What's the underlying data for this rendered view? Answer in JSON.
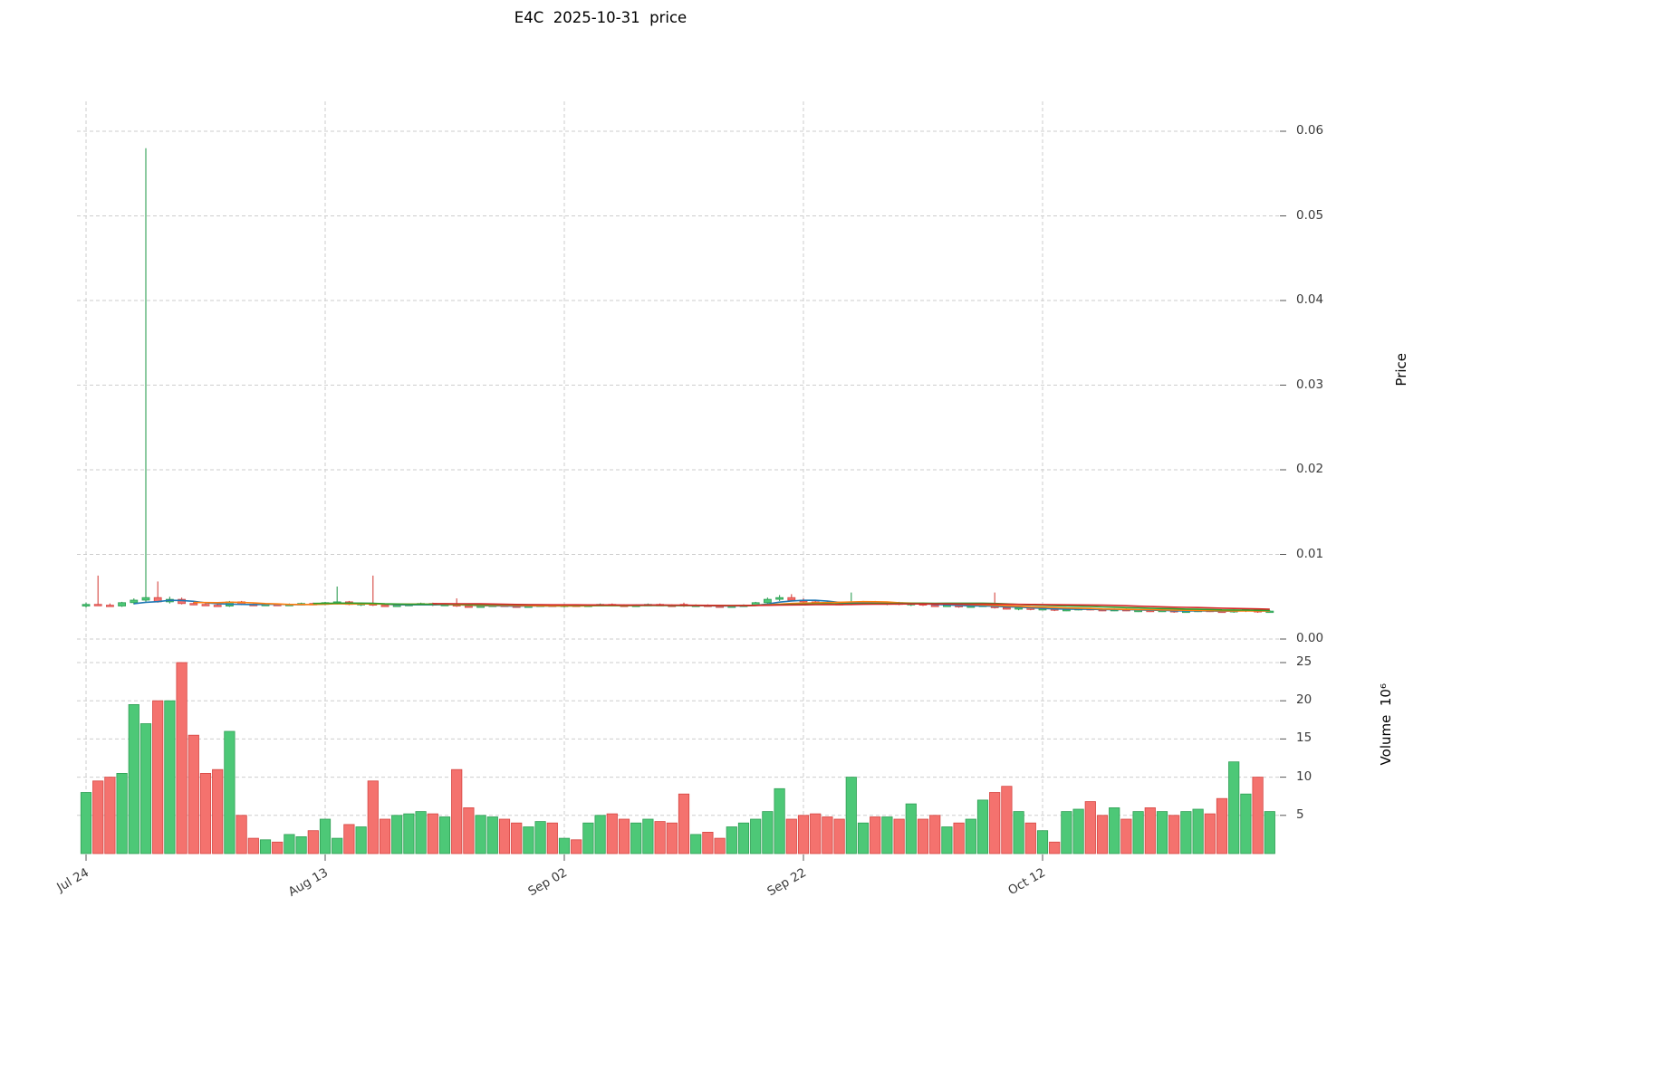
{
  "title": "E4C  2025-10-31  price",
  "price_axis": {
    "label": "Price",
    "tick_values": [
      0,
      0.01,
      0.02,
      0.03,
      0.04,
      0.05,
      0.06
    ],
    "tick_labels": [
      "0.00",
      "0.01",
      "0.02",
      "0.03",
      "0.04",
      "0.05",
      "0.06"
    ]
  },
  "volume_axis": {
    "label": "Volume  10⁶",
    "tick_values": [
      5,
      10,
      15,
      20,
      25
    ],
    "tick_labels": [
      "5",
      "10",
      "15",
      "20",
      "25"
    ]
  },
  "x_axis": {
    "tick_dates": [
      "2025-07-24",
      "2025-08-13",
      "2025-09-02",
      "2025-09-22",
      "2025-10-12"
    ],
    "tick_labels": [
      "Jul 24",
      "Aug 13",
      "Sep 02",
      "Sep 22",
      "Oct 12"
    ]
  },
  "chart_data": {
    "type": "candlestick+volume",
    "title": "E4C  2025-10-31  price",
    "symbol": "E4C",
    "as_of_date": "2025-10-31",
    "grid": "dashed",
    "legend": "none",
    "ylim_price": [
      0,
      0.0635
    ],
    "ylim_volume": [
      0,
      27.2
    ],
    "volume_unit": "millions",
    "colors": {
      "up": "#4dc877",
      "down": "#f4726e",
      "up_edge": "#2f9e54",
      "down_edge": "#d64541",
      "grid": "#cdcdcd"
    },
    "moving_averages": [
      {
        "window": 5,
        "color": "#1f77b4"
      },
      {
        "window": 10,
        "color": "#ff7f0e"
      },
      {
        "window": 20,
        "color": "#2ca02c"
      },
      {
        "window": 30,
        "color": "#d62728"
      }
    ],
    "columns": [
      "date",
      "open",
      "high",
      "low",
      "close",
      "volume_millions"
    ],
    "rows": [
      [
        "2025-07-24",
        0.0039,
        0.0043,
        0.0037,
        0.0041,
        8.0
      ],
      [
        "2025-07-25",
        0.0041,
        0.0075,
        0.0039,
        0.004,
        9.5
      ],
      [
        "2025-07-26",
        0.004,
        0.0042,
        0.0038,
        0.0039,
        10.0
      ],
      [
        "2025-07-27",
        0.0039,
        0.0044,
        0.0038,
        0.0043,
        10.5
      ],
      [
        "2025-07-28",
        0.0043,
        0.0048,
        0.0041,
        0.0046,
        19.5
      ],
      [
        "2025-07-29",
        0.0046,
        0.058,
        0.0044,
        0.0049,
        17.0
      ],
      [
        "2025-07-30",
        0.0049,
        0.0068,
        0.0043,
        0.0044,
        20.0
      ],
      [
        "2025-07-31",
        0.0044,
        0.005,
        0.0042,
        0.0047,
        20.0
      ],
      [
        "2025-08-01",
        0.0047,
        0.0049,
        0.0041,
        0.0042,
        25.0
      ],
      [
        "2025-08-02",
        0.0042,
        0.0045,
        0.004,
        0.0041,
        15.5
      ],
      [
        "2025-08-03",
        0.0041,
        0.0043,
        0.0039,
        0.004,
        10.5
      ],
      [
        "2025-08-04",
        0.004,
        0.0042,
        0.0038,
        0.0039,
        11.0
      ],
      [
        "2025-08-05",
        0.0039,
        0.0045,
        0.0038,
        0.0044,
        16.0
      ],
      [
        "2025-08-06",
        0.0044,
        0.0045,
        0.004,
        0.0041,
        5.0
      ],
      [
        "2025-08-07",
        0.0041,
        0.0042,
        0.0039,
        0.004,
        2.0
      ],
      [
        "2025-08-08",
        0.004,
        0.0042,
        0.0039,
        0.0041,
        1.8
      ],
      [
        "2025-08-09",
        0.0041,
        0.0042,
        0.0039,
        0.004,
        1.5
      ],
      [
        "2025-08-10",
        0.004,
        0.0042,
        0.0039,
        0.0041,
        2.5
      ],
      [
        "2025-08-11",
        0.0041,
        0.0043,
        0.004,
        0.0042,
        2.2
      ],
      [
        "2025-08-12",
        0.0042,
        0.0043,
        0.004,
        0.0041,
        3.0
      ],
      [
        "2025-08-13",
        0.0041,
        0.0044,
        0.004,
        0.0043,
        4.5
      ],
      [
        "2025-08-14",
        0.0043,
        0.0062,
        0.0041,
        0.0044,
        2.0
      ],
      [
        "2025-08-15",
        0.0044,
        0.0045,
        0.004,
        0.0041,
        3.8
      ],
      [
        "2025-08-16",
        0.0041,
        0.0043,
        0.0039,
        0.0042,
        3.5
      ],
      [
        "2025-08-17",
        0.0042,
        0.0075,
        0.0039,
        0.004,
        9.5
      ],
      [
        "2025-08-18",
        0.004,
        0.0042,
        0.0038,
        0.0039,
        4.5
      ],
      [
        "2025-08-19",
        0.0039,
        0.0041,
        0.0038,
        0.004,
        5.0
      ],
      [
        "2025-08-20",
        0.004,
        0.0042,
        0.0039,
        0.0041,
        5.2
      ],
      [
        "2025-08-21",
        0.0041,
        0.0043,
        0.004,
        0.0042,
        5.5
      ],
      [
        "2025-08-22",
        0.0042,
        0.0043,
        0.0039,
        0.004,
        5.2
      ],
      [
        "2025-08-23",
        0.004,
        0.0042,
        0.0039,
        0.0041,
        4.8
      ],
      [
        "2025-08-24",
        0.0041,
        0.0048,
        0.0038,
        0.0039,
        11.0
      ],
      [
        "2025-08-25",
        0.0039,
        0.0041,
        0.0037,
        0.0038,
        6.0
      ],
      [
        "2025-08-26",
        0.0038,
        0.004,
        0.0037,
        0.0039,
        5.0
      ],
      [
        "2025-08-27",
        0.0039,
        0.0041,
        0.0038,
        0.004,
        4.8
      ],
      [
        "2025-08-28",
        0.004,
        0.0041,
        0.0038,
        0.0039,
        4.5
      ],
      [
        "2025-08-29",
        0.0039,
        0.004,
        0.0037,
        0.0038,
        4.0
      ],
      [
        "2025-08-30",
        0.0038,
        0.004,
        0.0037,
        0.0039,
        3.5
      ],
      [
        "2025-08-31",
        0.0039,
        0.0041,
        0.0038,
        0.004,
        4.2
      ],
      [
        "2025-09-01",
        0.004,
        0.0041,
        0.0038,
        0.0039,
        4.0
      ],
      [
        "2025-09-02",
        0.0039,
        0.0041,
        0.0037,
        0.004,
        2.0
      ],
      [
        "2025-09-03",
        0.004,
        0.0041,
        0.0038,
        0.0039,
        1.8
      ],
      [
        "2025-09-04",
        0.0039,
        0.0041,
        0.0038,
        0.004,
        4.0
      ],
      [
        "2025-09-05",
        0.004,
        0.0042,
        0.0039,
        0.0041,
        5.0
      ],
      [
        "2025-09-06",
        0.0041,
        0.0042,
        0.0039,
        0.004,
        5.2
      ],
      [
        "2025-09-07",
        0.004,
        0.0041,
        0.0038,
        0.0039,
        4.5
      ],
      [
        "2025-09-08",
        0.0039,
        0.0041,
        0.0038,
        0.004,
        4.0
      ],
      [
        "2025-09-09",
        0.004,
        0.0042,
        0.0039,
        0.0041,
        4.5
      ],
      [
        "2025-09-10",
        0.0041,
        0.0042,
        0.0039,
        0.004,
        4.2
      ],
      [
        "2025-09-11",
        0.004,
        0.0041,
        0.0038,
        0.0039,
        4.0
      ],
      [
        "2025-09-12",
        0.0041,
        0.0043,
        0.0038,
        0.0039,
        7.8
      ],
      [
        "2025-09-13",
        0.0039,
        0.0041,
        0.0038,
        0.004,
        2.5
      ],
      [
        "2025-09-14",
        0.004,
        0.0041,
        0.0038,
        0.0039,
        2.8
      ],
      [
        "2025-09-15",
        0.0039,
        0.004,
        0.0037,
        0.0038,
        2.0
      ],
      [
        "2025-09-16",
        0.0038,
        0.004,
        0.0037,
        0.0039,
        3.5
      ],
      [
        "2025-09-17",
        0.0039,
        0.0041,
        0.0038,
        0.004,
        4.0
      ],
      [
        "2025-09-18",
        0.004,
        0.0044,
        0.0039,
        0.0043,
        4.5
      ],
      [
        "2025-09-19",
        0.0043,
        0.0049,
        0.0042,
        0.0047,
        5.5
      ],
      [
        "2025-09-20",
        0.0047,
        0.0052,
        0.0045,
        0.0049,
        8.5
      ],
      [
        "2025-09-21",
        0.0049,
        0.0053,
        0.0045,
        0.0046,
        4.5
      ],
      [
        "2025-09-22",
        0.0046,
        0.0048,
        0.0043,
        0.0044,
        5.0
      ],
      [
        "2025-09-23",
        0.0044,
        0.0046,
        0.0042,
        0.0043,
        5.2
      ],
      [
        "2025-09-24",
        0.0043,
        0.0045,
        0.0041,
        0.0042,
        4.8
      ],
      [
        "2025-09-25",
        0.0042,
        0.0044,
        0.004,
        0.0041,
        4.5
      ],
      [
        "2025-09-26",
        0.0041,
        0.0055,
        0.004,
        0.0043,
        10.0
      ],
      [
        "2025-09-27",
        0.0043,
        0.0045,
        0.0041,
        0.0044,
        4.0
      ],
      [
        "2025-09-28",
        0.0044,
        0.0045,
        0.0041,
        0.0042,
        4.8
      ],
      [
        "2025-09-29",
        0.0042,
        0.0044,
        0.004,
        0.0043,
        4.8
      ],
      [
        "2025-09-30",
        0.0043,
        0.0044,
        0.004,
        0.0041,
        4.5
      ],
      [
        "2025-10-01",
        0.0041,
        0.0043,
        0.0039,
        0.0042,
        6.5
      ],
      [
        "2025-10-02",
        0.0042,
        0.0043,
        0.0039,
        0.004,
        4.5
      ],
      [
        "2025-10-03",
        0.004,
        0.0042,
        0.0038,
        0.0039,
        5.0
      ],
      [
        "2025-10-04",
        0.0039,
        0.0041,
        0.0038,
        0.004,
        3.5
      ],
      [
        "2025-10-05",
        0.004,
        0.0041,
        0.0037,
        0.0038,
        4.0
      ],
      [
        "2025-10-06",
        0.0038,
        0.004,
        0.0037,
        0.0039,
        4.5
      ],
      [
        "2025-10-07",
        0.0039,
        0.0041,
        0.0038,
        0.004,
        7.0
      ],
      [
        "2025-10-08",
        0.004,
        0.0055,
        0.0036,
        0.0037,
        8.0
      ],
      [
        "2025-10-09",
        0.0037,
        0.0039,
        0.0035,
        0.0036,
        8.8
      ],
      [
        "2025-10-10",
        0.0036,
        0.0038,
        0.0034,
        0.0037,
        5.5
      ],
      [
        "2025-10-11",
        0.0037,
        0.0038,
        0.0034,
        0.0035,
        4.0
      ],
      [
        "2025-10-12",
        0.0035,
        0.0037,
        0.0034,
        0.0036,
        3.0
      ],
      [
        "2025-10-13",
        0.0036,
        0.0037,
        0.0033,
        0.0034,
        1.5
      ],
      [
        "2025-10-14",
        0.0034,
        0.0036,
        0.0033,
        0.0035,
        5.5
      ],
      [
        "2025-10-15",
        0.0035,
        0.0037,
        0.0034,
        0.0036,
        5.8
      ],
      [
        "2025-10-16",
        0.0036,
        0.0037,
        0.0034,
        0.0035,
        6.8
      ],
      [
        "2025-10-17",
        0.0035,
        0.0036,
        0.0033,
        0.0034,
        5.0
      ],
      [
        "2025-10-18",
        0.0034,
        0.0036,
        0.0033,
        0.0035,
        6.0
      ],
      [
        "2025-10-19",
        0.0035,
        0.0036,
        0.0033,
        0.0034,
        4.5
      ],
      [
        "2025-10-20",
        0.0033,
        0.0035,
        0.0032,
        0.0034,
        5.5
      ],
      [
        "2025-10-21",
        0.0034,
        0.0035,
        0.0032,
        0.0033,
        6.0
      ],
      [
        "2025-10-22",
        0.0033,
        0.0035,
        0.0032,
        0.0034,
        5.5
      ],
      [
        "2025-10-23",
        0.0034,
        0.0035,
        0.0031,
        0.0032,
        5.0
      ],
      [
        "2025-10-24",
        0.0032,
        0.0034,
        0.0031,
        0.0033,
        5.5
      ],
      [
        "2025-10-25",
        0.0033,
        0.0035,
        0.0032,
        0.0034,
        5.8
      ],
      [
        "2025-10-26",
        0.0034,
        0.0035,
        0.0032,
        0.0033,
        5.2
      ],
      [
        "2025-10-27",
        0.0033,
        0.0034,
        0.0031,
        0.0032,
        7.2
      ],
      [
        "2025-10-28",
        0.0032,
        0.0035,
        0.0031,
        0.0034,
        12.0
      ],
      [
        "2025-10-29",
        0.0034,
        0.0036,
        0.0032,
        0.0035,
        7.8
      ],
      [
        "2025-10-30",
        0.0035,
        0.0036,
        0.0031,
        0.0032,
        10.0
      ],
      [
        "2025-10-31",
        0.0032,
        0.0034,
        0.0031,
        0.0033,
        5.5
      ]
    ]
  }
}
